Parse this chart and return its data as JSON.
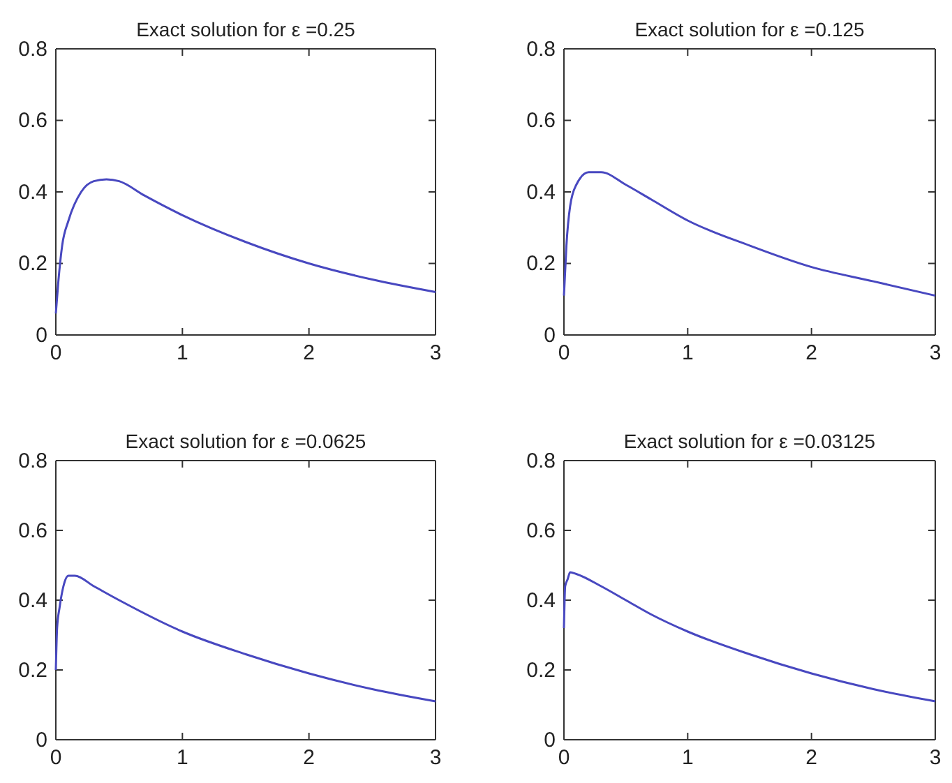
{
  "chart_data": [
    {
      "type": "line",
      "title": "Exact solution for ε =0.25",
      "xlim": [
        0,
        3
      ],
      "xticks": [
        0,
        1,
        2,
        3
      ],
      "ylim": [
        0,
        0.8
      ],
      "yticks": [
        0,
        0.2,
        0.4,
        0.6,
        0.8
      ],
      "grid": false,
      "series": [
        {
          "color": "#4848c0",
          "x": [
            0,
            0.02,
            0.05,
            0.1,
            0.2,
            0.3,
            0.4,
            0.5,
            0.7,
            1,
            1.5,
            2,
            2.5,
            3
          ],
          "values": [
            0.06,
            0.15,
            0.25,
            0.32,
            0.4,
            0.43,
            0.435,
            0.43,
            0.39,
            0.335,
            0.26,
            0.2,
            0.155,
            0.12
          ]
        }
      ]
    },
    {
      "type": "line",
      "title": "Exact solution for ε =0.125",
      "xlim": [
        0,
        3
      ],
      "xticks": [
        0,
        1,
        2,
        3
      ],
      "ylim": [
        0,
        0.8
      ],
      "yticks": [
        0,
        0.2,
        0.4,
        0.6,
        0.8
      ],
      "grid": false,
      "series": [
        {
          "color": "#4848c0",
          "x": [
            0,
            0.02,
            0.05,
            0.1,
            0.2,
            0.3,
            0.5,
            0.7,
            1,
            1.5,
            2,
            2.5,
            3
          ],
          "values": [
            0.11,
            0.25,
            0.36,
            0.42,
            0.455,
            0.455,
            0.42,
            0.38,
            0.32,
            0.25,
            0.19,
            0.15,
            0.11
          ]
        }
      ]
    },
    {
      "type": "line",
      "title": "Exact solution for ε =0.0625",
      "xlim": [
        0,
        3
      ],
      "xticks": [
        0,
        1,
        2,
        3
      ],
      "ylim": [
        0,
        0.8
      ],
      "yticks": [
        0,
        0.2,
        0.4,
        0.6,
        0.8
      ],
      "grid": false,
      "series": [
        {
          "color": "#4848c0",
          "x": [
            0,
            0.01,
            0.03,
            0.06,
            0.1,
            0.15,
            0.3,
            0.5,
            1,
            1.5,
            2,
            2.5,
            3
          ],
          "values": [
            0.2,
            0.32,
            0.38,
            0.44,
            0.47,
            0.47,
            0.44,
            0.4,
            0.31,
            0.245,
            0.19,
            0.145,
            0.11
          ]
        }
      ]
    },
    {
      "type": "line",
      "title": "Exact solution for ε =0.03125",
      "xlim": [
        0,
        3
      ],
      "xticks": [
        0,
        1,
        2,
        3
      ],
      "ylim": [
        0,
        0.8
      ],
      "yticks": [
        0,
        0.2,
        0.4,
        0.6,
        0.8
      ],
      "grid": false,
      "series": [
        {
          "color": "#4848c0",
          "x": [
            0,
            0.01,
            0.03,
            0.05,
            0.1,
            0.3,
            0.5,
            0.7,
            1,
            1.5,
            2,
            2.5,
            3
          ],
          "values": [
            0.32,
            0.44,
            0.46,
            0.48,
            0.475,
            0.44,
            0.4,
            0.36,
            0.31,
            0.245,
            0.19,
            0.145,
            0.11
          ]
        }
      ]
    }
  ]
}
